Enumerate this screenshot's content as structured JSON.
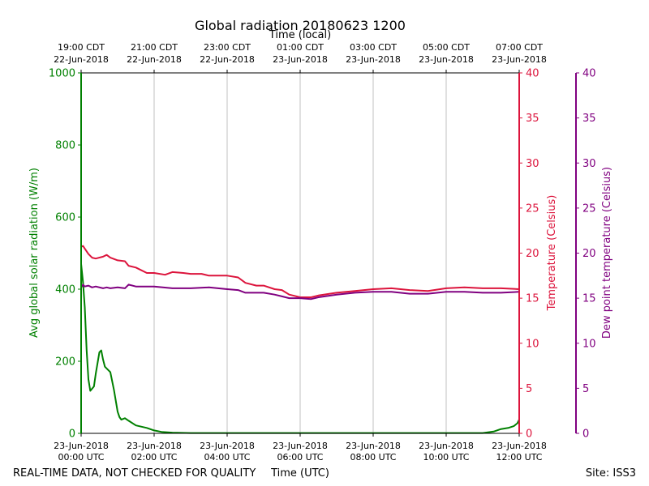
{
  "chart_data": {
    "type": "line",
    "title": "Global radiation 20180623 1200",
    "top_axis_title": "Time (local)",
    "bottom_axis_title": "Time (UTC)",
    "footer_left": "REAL-TIME DATA, NOT CHECKED FOR QUALITY",
    "footer_right": "Site: ISS3",
    "x_unit": "hours since 23-Jun-2018 00:00 UTC",
    "xlim": [
      0,
      12
    ],
    "grid": "vertical",
    "bottom_ticks": [
      {
        "x": 0,
        "line1": "23-Jun-2018",
        "line2": "00:00 UTC"
      },
      {
        "x": 2,
        "line1": "23-Jun-2018",
        "line2": "02:00 UTC"
      },
      {
        "x": 4,
        "line1": "23-Jun-2018",
        "line2": "04:00 UTC"
      },
      {
        "x": 6,
        "line1": "23-Jun-2018",
        "line2": "06:00 UTC"
      },
      {
        "x": 8,
        "line1": "23-Jun-2018",
        "line2": "08:00 UTC"
      },
      {
        "x": 10,
        "line1": "23-Jun-2018",
        "line2": "10:00 UTC"
      },
      {
        "x": 12,
        "line1": "23-Jun-2018",
        "line2": "12:00 UTC"
      }
    ],
    "top_ticks": [
      {
        "x": 0,
        "line1": "19:00 CDT",
        "line2": "22-Jun-2018"
      },
      {
        "x": 2,
        "line1": "21:00 CDT",
        "line2": "22-Jun-2018"
      },
      {
        "x": 4,
        "line1": "23:00 CDT",
        "line2": "22-Jun-2018"
      },
      {
        "x": 6,
        "line1": "01:00 CDT",
        "line2": "23-Jun-2018"
      },
      {
        "x": 8,
        "line1": "03:00 CDT",
        "line2": "23-Jun-2018"
      },
      {
        "x": 10,
        "line1": "05:00 CDT",
        "line2": "23-Jun-2018"
      },
      {
        "x": 12,
        "line1": "07:00 CDT",
        "line2": "23-Jun-2018"
      }
    ],
    "axes": {
      "radiation": {
        "label": "Avg global solar radiation (W/m)",
        "ylim": [
          0,
          1000
        ],
        "ticks": [
          0,
          200,
          400,
          600,
          800,
          1000
        ],
        "color": "#008000"
      },
      "temperature": {
        "label": "Temperature (Celsius)",
        "ylim": [
          0,
          40
        ],
        "ticks": [
          0,
          5,
          10,
          15,
          20,
          25,
          30,
          35,
          40
        ],
        "color": "#dc143c"
      },
      "dewpoint": {
        "label": "Dew point temperature (Celsius)",
        "ylim": [
          0,
          40
        ],
        "ticks": [
          0,
          5,
          10,
          15,
          20,
          25,
          30,
          35,
          40
        ],
        "color": "#800080"
      }
    },
    "series": [
      {
        "key": "radiation",
        "axis": "radiation",
        "color": "#008000",
        "x": [
          0,
          0.05,
          0.1,
          0.15,
          0.2,
          0.25,
          0.35,
          0.4,
          0.5,
          0.55,
          0.6,
          0.65,
          0.7,
          0.8,
          0.9,
          1.0,
          1.05,
          1.1,
          1.2,
          1.3,
          1.5,
          1.8,
          2.0,
          2.2,
          2.5,
          3.0,
          4.0,
          6.0,
          8.0,
          10.0,
          11.0,
          11.3,
          11.5,
          11.7,
          11.85,
          11.95,
          12.0
        ],
        "y": [
          470,
          420,
          350,
          230,
          150,
          118,
          130,
          165,
          225,
          230,
          205,
          185,
          180,
          170,
          120,
          60,
          45,
          38,
          42,
          35,
          22,
          15,
          8,
          4,
          2,
          1,
          1,
          1,
          1,
          1,
          1,
          5,
          12,
          15,
          20,
          28,
          38
        ]
      },
      {
        "key": "temperature",
        "axis": "temperature",
        "color": "#dc143c",
        "x": [
          0,
          0.05,
          0.1,
          0.2,
          0.3,
          0.4,
          0.6,
          0.7,
          0.8,
          1.0,
          1.2,
          1.3,
          1.5,
          1.8,
          2.0,
          2.3,
          2.5,
          2.8,
          3.0,
          3.3,
          3.5,
          4.0,
          4.3,
          4.5,
          4.8,
          5.0,
          5.3,
          5.5,
          5.7,
          6.0,
          6.3,
          6.5,
          7.0,
          7.5,
          8.0,
          8.5,
          9.0,
          9.5,
          10.0,
          10.5,
          11.0,
          11.5,
          12.0
        ],
        "y": [
          20.7,
          20.8,
          20.5,
          19.9,
          19.5,
          19.4,
          19.6,
          19.8,
          19.5,
          19.2,
          19.1,
          18.6,
          18.4,
          17.8,
          17.8,
          17.6,
          17.9,
          17.8,
          17.7,
          17.7,
          17.5,
          17.5,
          17.3,
          16.7,
          16.4,
          16.4,
          16.0,
          15.9,
          15.4,
          15.1,
          15.1,
          15.3,
          15.6,
          15.8,
          16.0,
          16.1,
          15.9,
          15.8,
          16.1,
          16.2,
          16.1,
          16.1,
          16.0
        ]
      },
      {
        "key": "dewpoint",
        "axis": "dewpoint",
        "color": "#800080",
        "x": [
          0,
          0.05,
          0.1,
          0.2,
          0.3,
          0.4,
          0.6,
          0.7,
          0.8,
          1.0,
          1.2,
          1.3,
          1.5,
          2.0,
          2.5,
          3.0,
          3.5,
          4.0,
          4.3,
          4.5,
          5.0,
          5.3,
          5.5,
          5.7,
          6.0,
          6.3,
          6.5,
          7.0,
          7.5,
          8.0,
          8.5,
          9.0,
          9.5,
          10.0,
          10.5,
          11.0,
          11.5,
          12.0
        ],
        "y": [
          16.2,
          16.5,
          16.3,
          16.4,
          16.2,
          16.3,
          16.1,
          16.2,
          16.1,
          16.2,
          16.1,
          16.5,
          16.3,
          16.3,
          16.1,
          16.1,
          16.2,
          16.0,
          15.9,
          15.6,
          15.6,
          15.4,
          15.2,
          15.0,
          15.0,
          14.9,
          15.1,
          15.4,
          15.6,
          15.7,
          15.7,
          15.5,
          15.5,
          15.7,
          15.7,
          15.6,
          15.6,
          15.7
        ]
      }
    ]
  }
}
